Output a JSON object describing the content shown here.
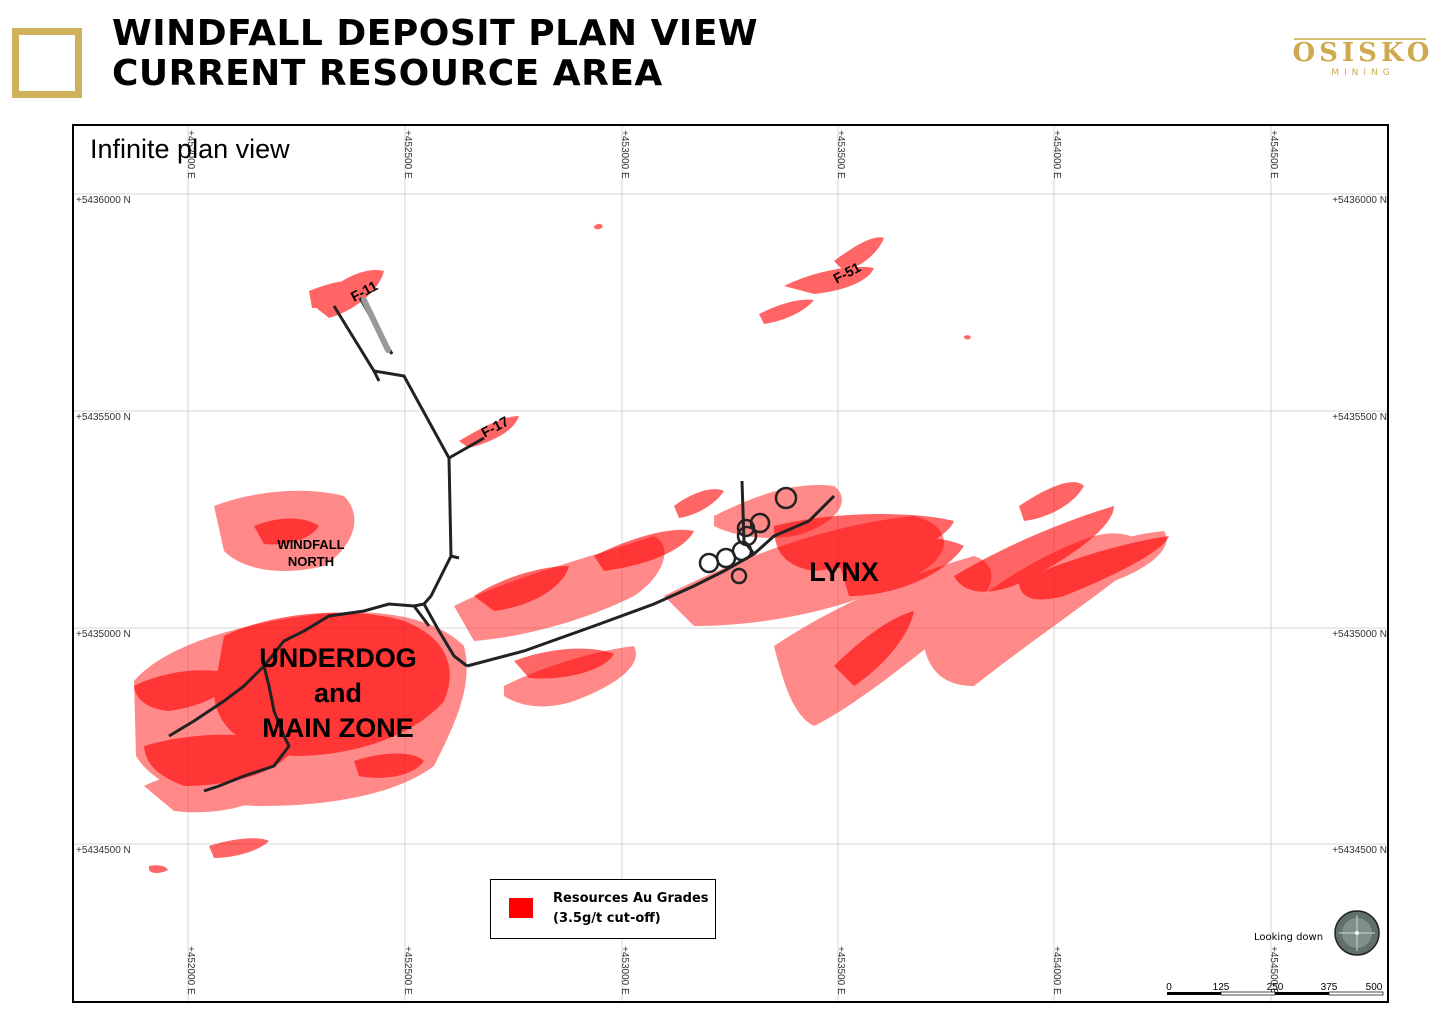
{
  "header": {
    "title_line1": "WINDFALL DEPOSIT PLAN VIEW",
    "title_line2": "CURRENT RESOURCE AREA"
  },
  "logo": {
    "main": "OSISKO",
    "sub": "MINING"
  },
  "map": {
    "panel_title": "Infinite plan view",
    "easting_labels": [
      "+452000 E",
      "+452500 E",
      "+453000 E",
      "+453500 E",
      "+454000 E",
      "+454500 E"
    ],
    "northing_labels": [
      "+5436000 N",
      "+5435500 N",
      "+5435000 N",
      "+5434500 N"
    ],
    "zone_labels": {
      "f11": "F-11",
      "f17": "F-17",
      "f51": "F-51",
      "windfall_north_1": "WINDFALL",
      "windfall_north_2": "NORTH",
      "lynx": "LYNX",
      "underdog_1": "UNDERDOG",
      "underdog_2": "and",
      "underdog_3": "MAIN ZONE"
    },
    "looking": "Looking down",
    "scale_labels": [
      "0",
      "125",
      "250",
      "375",
      "500"
    ]
  },
  "legend": {
    "line1": "Resources Au Grades",
    "line2": "(3.5g/t cut-off)"
  },
  "colors": {
    "resource": "#ff0000",
    "gold_accent": "#cfb25a"
  }
}
